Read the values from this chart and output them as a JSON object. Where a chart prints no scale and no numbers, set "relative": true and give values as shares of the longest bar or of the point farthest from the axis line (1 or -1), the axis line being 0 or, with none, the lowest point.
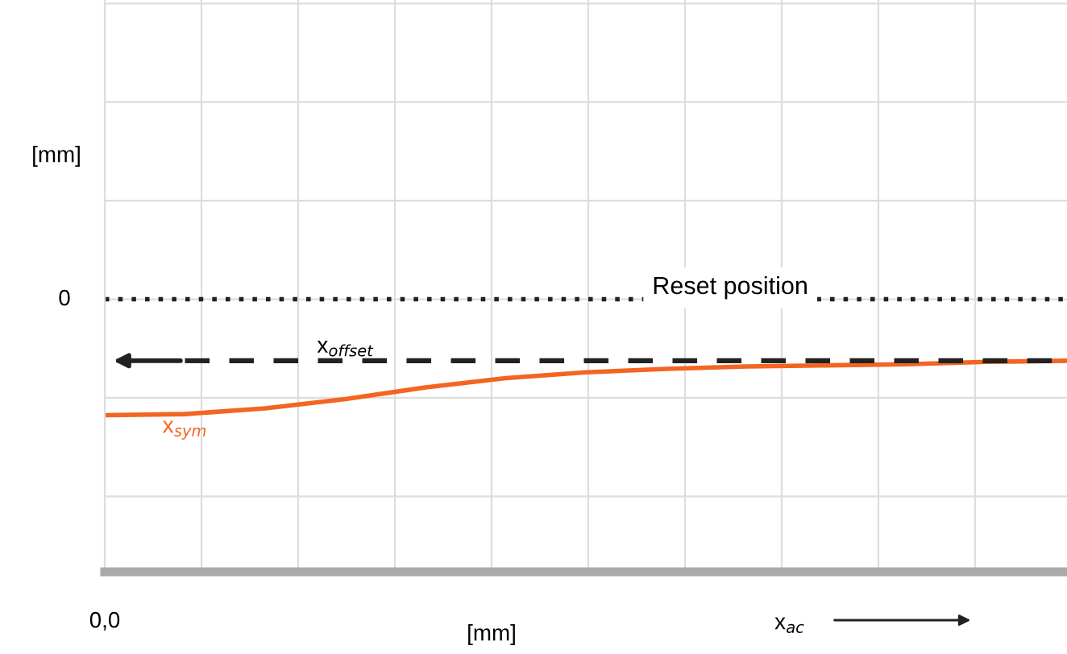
{
  "chart_data": {
    "type": "line",
    "relative": true,
    "categories": [
      null,
      null,
      null,
      null,
      null,
      null,
      null,
      null,
      null,
      null,
      null,
      null,
      null
    ],
    "series": [
      {
        "name": "x$_{sym}$",
        "color": "#f26522",
        "values": [
          -1,
          -0.99,
          -0.94,
          -0.86,
          -0.76,
          -0.68,
          -0.63,
          -0.6,
          -0.58,
          -0.57,
          -0.56,
          -0.54,
          -0.53
        ]
      }
    ],
    "ref_lines": [
      {
        "axis": "y",
        "value": 0,
        "label": "Reset position",
        "color": "#222222",
        "line_style": "dotted"
      },
      {
        "axis": "y",
        "value": -0.53,
        "label": "x$_{offset}$",
        "color": "#222222",
        "line_style": "dashed"
      }
    ],
    "annotations": [
      "0",
      "0,0",
      "x$_{ac}$",
      "[mm]",
      "[mm]"
    ],
    "grid": true,
    "tick_labels": false,
    "marker": "none",
    "line_style": "solid"
  }
}
